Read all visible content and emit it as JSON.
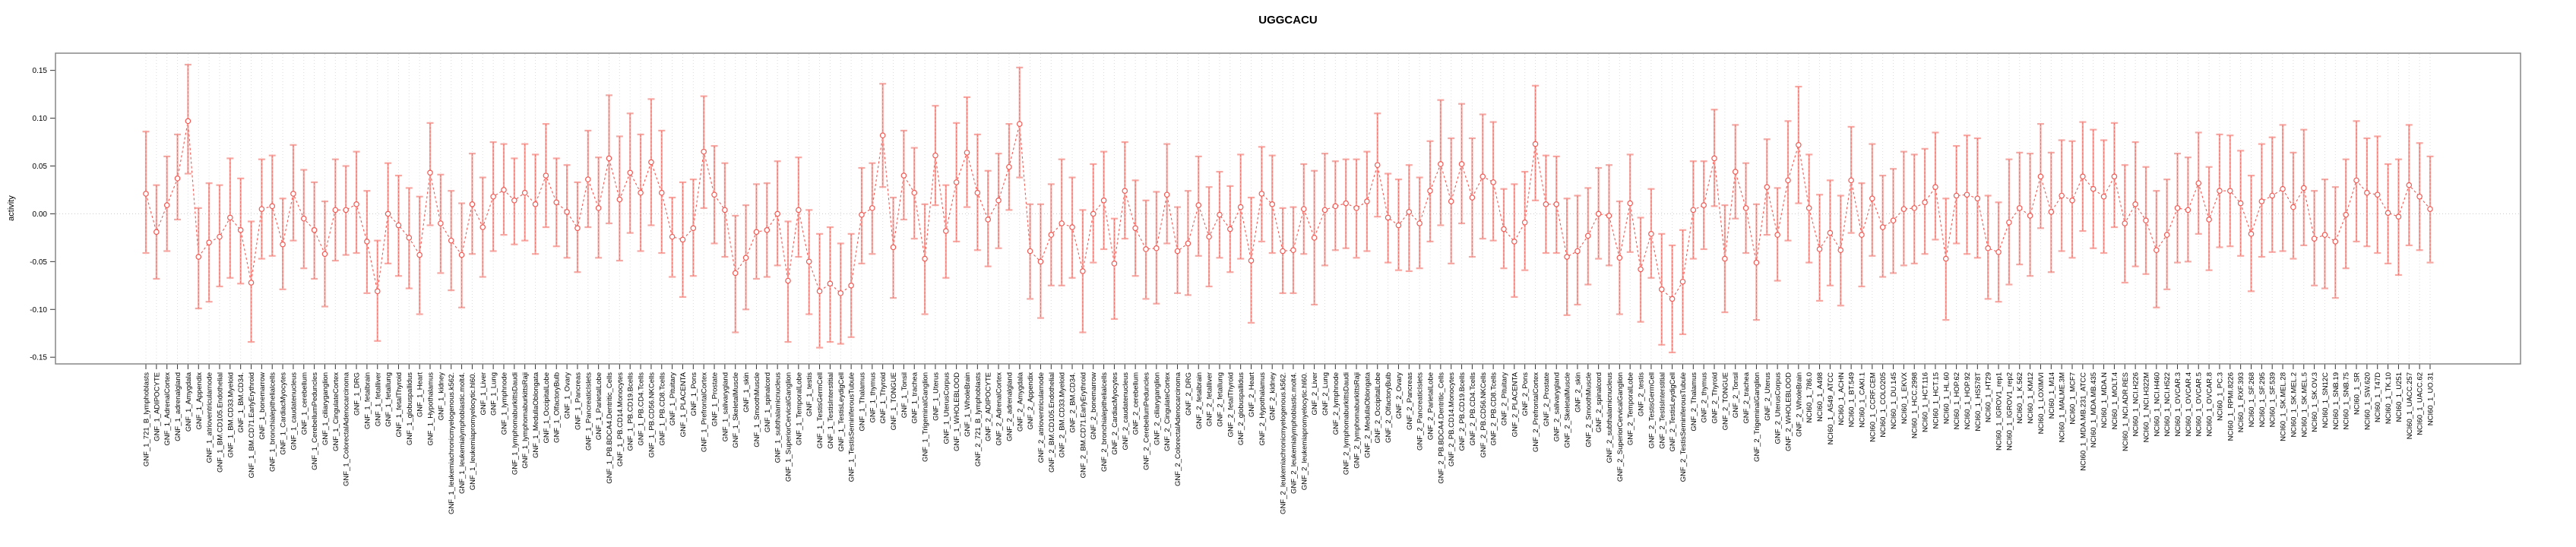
{
  "title": "UGGCACU",
  "y_axis": {
    "label": "activity",
    "tick_labels": [
      "0.15",
      "0.10",
      "0.05",
      "0.00",
      "-0.05",
      "-0.10",
      "-0.15"
    ],
    "tick_values": [
      0.15,
      0.1,
      0.05,
      0.0,
      -0.05,
      -0.1,
      -0.15
    ]
  },
  "colors": {
    "point": "#f15b55",
    "series_line": "#f15b55",
    "whisker": "#f7a8a3",
    "whisker_dash": "#ef6b64",
    "grid": "#dcdcdc",
    "zero_line": "#c9c9c9",
    "box": "#878787",
    "tick": "#333333",
    "text": "#000000"
  },
  "chart_data": {
    "type": "line",
    "title": "UGGCACU",
    "xlabel": "",
    "ylabel": "activity",
    "ylim": [
      -0.157,
      0.168
    ],
    "grid": "vertical dotted gridline per category; dotted horizontal zero line",
    "legend": "none",
    "marker": "open-circle with error bars",
    "categories": [
      "GNF_1_721_B_lymphoblasts",
      "GNF_1_ADIPOCYTE",
      "GNF_1_AdrenalCortex",
      "GNF_1_adrenalgland",
      "GNF_1_Amygdala",
      "GNF_1_Appendix",
      "GNF_1_atrioventricularnode",
      "GNF_1_BM.CD105.Endothelial",
      "GNF_1_BM.CD33.Myeloid",
      "GNF_1_BM.CD34.",
      "GNF_1_BM.CD71.EarlyErythroid",
      "GNF_1_bonemarrow",
      "GNF_1_bronchialepithelialcells",
      "GNF_1_CardiacMyocytes",
      "GNF_1_caudatenucleus",
      "GNF_1_cerebellum",
      "GNF_1_CerebellumPeduncles",
      "GNF_1_ciliaryganglion",
      "GNF_1_CingulateCortex",
      "GNF_1_ColorectalAdenocarcinoma",
      "GNF_1_DRG",
      "GNF_1_fetalbrain",
      "GNF_1_fetalliver",
      "GNF_1_fetallung",
      "GNF_1_fetalThyroid",
      "GNF_1_globuspallidus",
      "GNF_1_Heart",
      "GNF_1_Hypothalamus",
      "GNF_1_kidney",
      "GNF_1_leukemiachronicmyelogenous.k562.",
      "GNF_1_leukemialymphoblastic.molt4.",
      "GNF_1_leukemiapromyelocytic.hl60.",
      "GNF_1_Liver",
      "GNF_1_Lung",
      "GNF_1_lymphnode",
      "GNF_1_lymphomaburkittsDaudi",
      "GNF_1_lymphomaburkittsRaji",
      "GNF_1_MedullaOblongata",
      "GNF_1_OccipitalLobe",
      "GNF_1_OlfactoryBulb",
      "GNF_1_Ovary",
      "GNF_1_Pancreas",
      "GNF_1_PancreaticIslets",
      "GNF_1_ParietalLobe",
      "GNF_1_PB.BDCA4.Dentritic_Cells",
      "GNF_1_PB.CD14.Monocytes",
      "GNF_1_PB.CD19.Bcells",
      "GNF_1_PB.CD4.Tcells",
      "GNF_1_PB.CD56.NKCells",
      "GNF_1_PB.CD8.Tcells",
      "GNF_1_Pituitary",
      "GNF_1_PLACENTA",
      "GNF_1_Pons",
      "GNF_1_PrefrontalCortex",
      "GNF_1_Prostate",
      "GNF_1_salivarygland",
      "GNF_1_SkeletalMuscle",
      "GNF_1_skin",
      "GNF_1_SmoothMuscle",
      "GNF_1_spinalcord",
      "GNF_1_subthalamicnucleus",
      "GNF_1_SuperiorCervicalGanglion",
      "GNF_1_TemporalLobe",
      "GNF_1_testis",
      "GNF_1_TestisGermCell",
      "GNF_1_TestisInterstitial",
      "GNF_1_TestisLeydigCell",
      "GNF_1_TestisSeminiferousTubule",
      "GNF_1_Thalamus",
      "GNF_1_thymus",
      "GNF_1_Thyroid",
      "GNF_1_TONGUE",
      "GNF_1_Tonsil",
      "GNF_1_trachea",
      "GNF_1_TrigeminalGanglion",
      "GNF_1_Uterus",
      "GNF_1_UterusCorpus",
      "GNF_1_WHOLEBLOOD",
      "GNF_1_WholeBrain",
      "GNF_2_721_B_lymphoblasts",
      "GNF_2_ADIPOCYTE",
      "GNF_2_AdrenalCortex",
      "GNF_2_adrenalgland",
      "GNF_2_Amygdala",
      "GNF_2_Appendix",
      "GNF_2_atrioventricularnode",
      "GNF_2_BM.CD105.Endothelial",
      "GNF_2_BM.CD33.Myeloid",
      "GNF_2_BM.CD34.",
      "GNF_2_BM.CD71.EarlyErythroid",
      "GNF_2_bonemarrow",
      "GNF_2_bronchialepithelialcells",
      "GNF_2_CardiacMyocytes",
      "GNF_2_caudatenucleus",
      "GNF_2_cerebellum",
      "GNF_2_CerebellumPeduncles",
      "GNF_2_ciliaryganglion",
      "GNF_2_CingulateCortex",
      "GNF_2_ColorectalAdenocarcinoma",
      "GNF_2_DRG",
      "GNF_2_fetalbrain",
      "GNF_2_fetalliver",
      "GNF_2_fetallung",
      "GNF_2_fetalThyroid",
      "GNF_2_globuspallidus",
      "GNF_2_Heart",
      "GNF_2_Hypothalamus",
      "GNF_2_kidney",
      "GNF_2_leukemiachronicmyelogenous.k562.",
      "GNF_2_leukemialymphoblastic.molt4.",
      "GNF_2_leukemiapromyelocytic.hl60.",
      "GNF_2_Liver",
      "GNF_2_Lung",
      "GNF_2_lymphnode",
      "GNF_2_lymphomaburkittsDaudi",
      "GNF_2_lymphomaburkittsRaji",
      "GNF_2_MedullaOblongata",
      "GNF_2_OccipitalLobe",
      "GNF_2_OlfactoryBulb",
      "GNF_2_Ovary",
      "GNF_2_Pancreas",
      "GNF_2_PancreaticIslets",
      "GNF_2_ParietalLobe",
      "GNF_2_PB.BDCA4.Dentritic_Cells",
      "GNF_2_PB.CD14.Monocytes",
      "GNF_2_PB.CD19.Bcells",
      "GNF_2_PB.CD4.Tcells",
      "GNF_2_PB.CD56.NKCells",
      "GNF_2_PB.CD8.Tcells",
      "GNF_2_Pituitary",
      "GNF_2_PLACENTA",
      "GNF_2_Pons",
      "GNF_2_PrefrontalCortex",
      "GNF_2_Prostate",
      "GNF_2_salivarygland",
      "GNF_2_SkeletalMuscle",
      "GNF_2_skin",
      "GNF_2_SmoothMuscle",
      "GNF_2_spinalcord",
      "GNF_2_subthalamicnucleus",
      "GNF_2_SuperiorCervicalGanglion",
      "GNF_2_TemporalLobe",
      "GNF_2_testis",
      "GNF_2_TestisGermCell",
      "GNF_2_TestisInterstitial",
      "GNF_2_TestisLeydigCell",
      "GNF_2_TestisSeminiferousTubule",
      "GNF_2_Thalamus",
      "GNF_2_thymus",
      "GNF_2_Thyroid",
      "GNF_2_TONGUE",
      "GNF_2_Tonsil",
      "GNF_2_trachea",
      "GNF_2_TrigeminalGanglion",
      "GNF_2_Uterus",
      "GNF_2_UterusCorpus",
      "GNF_2_WHOLEBLOOD",
      "GNF_2_WholeBrain",
      "NCI60_1_786.0",
      "NCI60_1_A498",
      "NCI60_1_A549_ATCC",
      "NCI60_1_ACHN",
      "NCI60_1_BT.549",
      "NCI60_1_CAKI.1",
      "NCI60_1_CCRF.CEM",
      "NCI60_1_COLO205",
      "NCI60_1_DU.145",
      "NCI60_1_EKVX",
      "NCI60_1_HCC.2998",
      "NCI60_1_HCT.116",
      "NCI60_1_HCT.15",
      "NCI60_1_HL.60",
      "NCI60_1_HOP.62",
      "NCI60_1_HOP.92",
      "NCI60_1_HS578T",
      "NCI60_1_HT29",
      "NCI60_1_IGROV1_rep1",
      "NCI60_1_IGROV1_rep2",
      "NCI60_1_K.562",
      "NCI60_1_KM12",
      "NCI60_1_LOXIMVI",
      "NCI60_1_M14",
      "NCI60_1_MALME.3M",
      "NCI60_1_MCF7",
      "NCI60_1_MDA.MB.231_ATCC",
      "NCI60_1_MDA.MB.435",
      "NCI60_1_MDA.N",
      "NCI60_1_MOLT.4",
      "NCI60_1_NCI.ADR.RES",
      "NCI60_1_NCI.H226",
      "NCI60_1_NCI.H322M",
      "NCI60_1_NCI.H460",
      "NCI60_1_NCI.H522",
      "NCI60_1_OVCAR.3",
      "NCI60_1_OVCAR.4",
      "NCI60_1_OVCAR.5",
      "NCI60_1_OVCAR.8",
      "NCI60_1_PC.3",
      "NCI60_1_RPMI.8226",
      "NCI60_1_RXF.393",
      "NCI60_1_SF.268",
      "NCI60_1_SF.295",
      "NCI60_1_SF.539",
      "NCI60_1_SK.MEL.28",
      "NCI60_1_SK.MEL.2",
      "NCI60_1_SK.MEL.5",
      "NCI60_1_SK.OV.3",
      "NCI60_1_SN12C",
      "NCI60_1_SNB.19",
      "NCI60_1_SNB.75",
      "NCI60_1_SR",
      "NCI60_1_SW.620",
      "NCI60_1_T47D",
      "NCI60_1_TK.10",
      "NCI60_1_U251",
      "NCI60_1_UACC.257",
      "NCI60_1_UACC.62",
      "NCI60_1_UO.31"
    ],
    "series": [
      {
        "name": "activity",
        "values": [
          0.021,
          -0.019,
          0.009,
          0.037,
          0.097,
          -0.045,
          -0.03,
          -0.024,
          -0.004,
          -0.017,
          -0.072,
          0.005,
          0.008,
          -0.032,
          0.021,
          -0.005,
          -0.017,
          -0.042,
          0.004,
          0.004,
          0.01,
          -0.029,
          -0.081,
          0.0,
          -0.012,
          -0.025,
          -0.043,
          0.043,
          -0.01,
          -0.028,
          -0.043,
          0.01,
          -0.014,
          0.018,
          0.025,
          0.014,
          0.022,
          0.01,
          0.04,
          0.012,
          0.002,
          -0.015,
          0.036,
          0.006,
          0.058,
          0.015,
          0.043,
          0.022,
          0.054,
          0.022,
          -0.024,
          -0.027,
          -0.015,
          0.065,
          0.02,
          0.004,
          -0.062,
          -0.046,
          -0.019,
          -0.017,
          0.0,
          -0.07,
          0.004,
          -0.05,
          -0.081,
          -0.073,
          -0.083,
          -0.075,
          -0.001,
          0.006,
          0.082,
          -0.035,
          0.04,
          0.022,
          -0.047,
          0.061,
          -0.018,
          0.033,
          0.064,
          0.022,
          -0.006,
          0.014,
          0.049,
          0.094,
          -0.039,
          -0.05,
          -0.022,
          -0.01,
          -0.014,
          -0.06,
          0.0,
          0.014,
          -0.052,
          0.024,
          -0.015,
          -0.037,
          -0.036,
          0.02,
          -0.039,
          -0.031,
          0.009,
          -0.024,
          -0.001,
          -0.016,
          0.007,
          -0.049,
          0.021,
          0.01,
          -0.039,
          -0.038,
          0.005,
          -0.025,
          0.004,
          0.008,
          0.011,
          0.006,
          0.013,
          0.051,
          -0.004,
          -0.012,
          0.002,
          -0.01,
          0.024,
          0.052,
          0.013,
          0.052,
          0.017,
          0.039,
          0.033,
          -0.016,
          -0.029,
          -0.009,
          0.073,
          0.01,
          0.01,
          -0.045,
          -0.039,
          -0.023,
          0.0,
          -0.002,
          -0.046,
          0.011,
          -0.058,
          -0.021,
          -0.079,
          -0.089,
          -0.071,
          0.004,
          0.009,
          0.058,
          -0.047,
          0.044,
          0.006,
          -0.051,
          0.028,
          -0.022,
          0.035,
          0.072,
          0.006,
          -0.037,
          -0.02,
          -0.038,
          0.035,
          -0.022,
          0.016,
          -0.014,
          -0.007,
          0.005,
          0.006,
          0.012,
          0.028,
          -0.047,
          0.019,
          0.02,
          0.016,
          -0.036,
          -0.04,
          -0.009,
          0.006,
          -0.002,
          0.039,
          0.002,
          0.019,
          0.014,
          0.039,
          0.026,
          0.018,
          0.039,
          -0.01,
          0.01,
          -0.007,
          -0.038,
          -0.022,
          0.006,
          0.004,
          0.032,
          -0.006,
          0.024,
          0.024,
          0.011,
          -0.021,
          0.013,
          0.019,
          0.026,
          0.007,
          0.027,
          -0.026,
          -0.022,
          -0.029,
          -0.001,
          0.035,
          0.022,
          0.02,
          0.001,
          -0.003,
          0.03,
          0.018,
          0.005
        ],
        "lower": [
          -0.041,
          -0.068,
          -0.039,
          -0.006,
          0.042,
          -0.099,
          -0.092,
          -0.076,
          -0.067,
          -0.073,
          -0.134,
          -0.047,
          -0.044,
          -0.079,
          -0.028,
          -0.057,
          -0.068,
          -0.097,
          -0.049,
          -0.043,
          -0.041,
          -0.083,
          -0.133,
          -0.052,
          -0.065,
          -0.078,
          -0.105,
          -0.012,
          -0.062,
          -0.08,
          -0.098,
          -0.042,
          -0.066,
          -0.039,
          -0.022,
          -0.032,
          -0.028,
          -0.042,
          -0.014,
          -0.034,
          -0.046,
          -0.061,
          -0.014,
          -0.046,
          -0.01,
          -0.049,
          -0.02,
          -0.039,
          -0.012,
          -0.041,
          -0.066,
          -0.087,
          -0.065,
          0.006,
          -0.031,
          -0.045,
          -0.124,
          -0.1,
          -0.068,
          -0.066,
          -0.054,
          -0.134,
          -0.045,
          -0.105,
          -0.14,
          -0.134,
          -0.136,
          -0.129,
          -0.052,
          -0.042,
          0.028,
          -0.088,
          -0.006,
          -0.026,
          -0.105,
          0.009,
          -0.067,
          -0.029,
          0.007,
          -0.038,
          -0.055,
          -0.036,
          0.004,
          0.038,
          -0.089,
          -0.109,
          -0.075,
          -0.075,
          -0.067,
          -0.124,
          -0.051,
          -0.037,
          -0.11,
          -0.026,
          -0.065,
          -0.089,
          -0.094,
          -0.031,
          -0.083,
          -0.085,
          -0.044,
          -0.076,
          -0.046,
          -0.061,
          -0.047,
          -0.114,
          -0.029,
          -0.041,
          -0.083,
          -0.083,
          -0.042,
          -0.095,
          -0.054,
          -0.038,
          -0.036,
          -0.046,
          -0.039,
          -0.003,
          -0.051,
          -0.059,
          -0.06,
          -0.057,
          -0.029,
          -0.012,
          -0.052,
          -0.01,
          -0.045,
          -0.026,
          -0.028,
          -0.057,
          -0.087,
          -0.059,
          0.014,
          -0.041,
          -0.041,
          -0.106,
          -0.095,
          -0.074,
          -0.047,
          -0.054,
          -0.105,
          -0.04,
          -0.113,
          -0.067,
          -0.137,
          -0.145,
          -0.126,
          -0.047,
          -0.037,
          0.008,
          -0.103,
          -0.005,
          -0.041,
          -0.111,
          -0.022,
          -0.07,
          -0.028,
          0.011,
          -0.051,
          -0.091,
          -0.075,
          -0.096,
          -0.02,
          -0.076,
          -0.044,
          -0.066,
          -0.062,
          -0.054,
          -0.052,
          -0.042,
          -0.027,
          -0.111,
          -0.031,
          -0.042,
          -0.046,
          -0.089,
          -0.092,
          -0.074,
          -0.053,
          -0.065,
          -0.015,
          -0.061,
          -0.039,
          -0.046,
          -0.018,
          -0.036,
          -0.041,
          -0.014,
          -0.072,
          -0.055,
          -0.063,
          -0.098,
          -0.079,
          -0.051,
          -0.05,
          -0.021,
          -0.059,
          -0.035,
          -0.034,
          -0.044,
          -0.081,
          -0.045,
          -0.04,
          -0.039,
          -0.047,
          -0.033,
          -0.075,
          -0.078,
          -0.088,
          -0.057,
          -0.029,
          -0.034,
          -0.041,
          -0.052,
          -0.064,
          -0.033,
          -0.038,
          -0.051
        ],
        "upper": [
          0.086,
          0.03,
          0.06,
          0.083,
          0.156,
          0.006,
          0.032,
          0.03,
          0.058,
          0.037,
          -0.008,
          0.057,
          0.061,
          0.016,
          0.072,
          0.046,
          0.033,
          0.013,
          0.057,
          0.05,
          0.065,
          0.024,
          -0.028,
          0.053,
          0.04,
          0.027,
          0.018,
          0.095,
          0.041,
          0.024,
          0.011,
          0.063,
          0.038,
          0.075,
          0.073,
          0.058,
          0.073,
          0.062,
          0.094,
          0.058,
          0.051,
          0.033,
          0.087,
          0.059,
          0.124,
          0.081,
          0.105,
          0.083,
          0.12,
          0.087,
          0.017,
          0.033,
          0.036,
          0.123,
          0.071,
          0.053,
          -0.002,
          0.009,
          0.031,
          0.032,
          0.055,
          -0.008,
          0.059,
          0.004,
          -0.021,
          -0.014,
          -0.031,
          -0.021,
          0.048,
          0.053,
          0.136,
          0.017,
          0.087,
          0.069,
          0.01,
          0.113,
          0.03,
          0.095,
          0.122,
          0.083,
          0.045,
          0.063,
          0.094,
          0.153,
          0.01,
          0.01,
          0.031,
          0.057,
          0.038,
          0.004,
          0.052,
          0.065,
          -0.005,
          0.075,
          0.035,
          0.014,
          0.023,
          0.073,
          0.007,
          0.024,
          0.06,
          0.028,
          0.044,
          0.029,
          0.062,
          0.017,
          0.07,
          0.061,
          0.006,
          0.007,
          0.052,
          0.045,
          0.063,
          0.055,
          0.057,
          0.057,
          0.065,
          0.105,
          0.042,
          0.036,
          0.051,
          0.038,
          0.076,
          0.119,
          0.079,
          0.115,
          0.079,
          0.104,
          0.096,
          0.026,
          0.031,
          0.044,
          0.134,
          0.061,
          0.06,
          0.016,
          0.019,
          0.027,
          0.048,
          0.051,
          0.013,
          0.062,
          -0.004,
          0.026,
          -0.021,
          -0.033,
          -0.017,
          0.055,
          0.055,
          0.109,
          0.009,
          0.093,
          0.053,
          0.01,
          0.078,
          0.027,
          0.097,
          0.133,
          0.062,
          0.02,
          0.035,
          0.019,
          0.091,
          0.032,
          0.073,
          0.04,
          0.047,
          0.065,
          0.062,
          0.068,
          0.085,
          0.016,
          0.071,
          0.082,
          0.079,
          0.019,
          0.012,
          0.057,
          0.064,
          0.063,
          0.094,
          0.064,
          0.077,
          0.076,
          0.096,
          0.088,
          0.077,
          0.095,
          0.051,
          0.075,
          0.049,
          0.024,
          0.036,
          0.063,
          0.059,
          0.085,
          0.049,
          0.083,
          0.082,
          0.066,
          0.04,
          0.073,
          0.08,
          0.093,
          0.064,
          0.088,
          0.024,
          0.036,
          0.028,
          0.057,
          0.097,
          0.079,
          0.081,
          0.052,
          0.057,
          0.093,
          0.074,
          0.06
        ]
      }
    ]
  }
}
